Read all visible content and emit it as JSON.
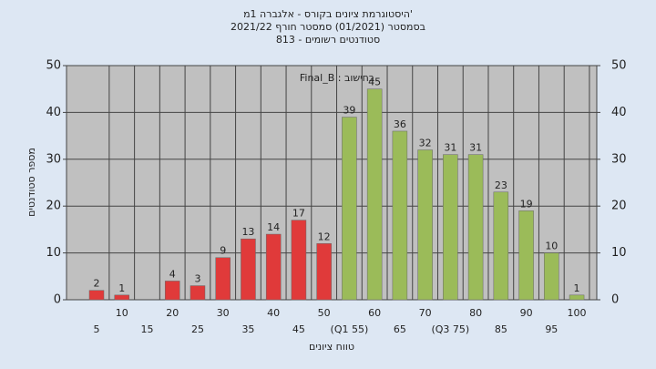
{
  "chart_data": {
    "type": "bar",
    "title": [
      "היסטוגרמת ציונים בקורס - אלגברה 1מ'",
      "בסמסטר (01/2021) סמסטר חורף 2021/22",
      "סטודנטים רשומים - 813"
    ],
    "annotation": "Final_B : בחישוב",
    "x_label": "טווח ציונים",
    "y_label": "מספר סטודנטים",
    "categories": [
      "5",
      "10",
      "15",
      "20",
      "25",
      "30",
      "35",
      "40",
      "45",
      "50",
      "(Q1 55)",
      "60",
      "65",
      "70",
      "(Q3 75)",
      "80",
      "85",
      "90",
      "95",
      "100"
    ],
    "values": [
      2,
      1,
      null,
      4,
      3,
      9,
      13,
      14,
      17,
      12,
      39,
      45,
      36,
      32,
      31,
      31,
      23,
      19,
      10,
      1
    ],
    "colors": [
      "#e03a3a",
      "#e03a3a",
      "#e03a3a",
      "#e03a3a",
      "#e03a3a",
      "#e03a3a",
      "#e03a3a",
      "#e03a3a",
      "#e03a3a",
      "#e03a3a",
      "#9bbb59",
      "#9bbb59",
      "#9bbb59",
      "#9bbb59",
      "#9bbb59",
      "#9bbb59",
      "#9bbb59",
      "#9bbb59",
      "#9bbb59",
      "#9bbb59"
    ],
    "ylim": [
      0,
      50
    ],
    "yticks": [
      0,
      10,
      20,
      30,
      40,
      50
    ],
    "y2lim": [
      0,
      50
    ],
    "y2ticks": [
      0,
      10,
      20,
      30,
      40,
      50
    ],
    "grid": true
  }
}
